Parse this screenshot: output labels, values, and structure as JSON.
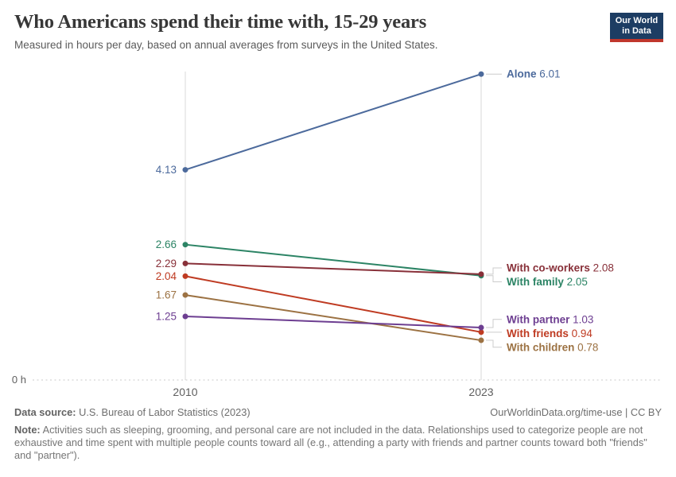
{
  "chart_data": {
    "type": "line",
    "variant": "slope",
    "title": "Who Americans spend their time with, 15-29 years",
    "subtitle": "Measured in hours per day, based on annual averages from surveys in the United States.",
    "x": [
      "2010",
      "2023"
    ],
    "series": [
      {
        "name": "Alone",
        "values": [
          4.13,
          6.01
        ],
        "color": "#4C6A9C"
      },
      {
        "name": "With family",
        "values": [
          2.66,
          2.05
        ],
        "color": "#2C8465"
      },
      {
        "name": "With co-workers",
        "values": [
          2.29,
          2.08
        ],
        "color": "#883039"
      },
      {
        "name": "With friends",
        "values": [
          2.04,
          0.94
        ],
        "color": "#BF3B22"
      },
      {
        "name": "With children",
        "values": [
          1.67,
          0.78
        ],
        "color": "#9C7243"
      },
      {
        "name": "With partner",
        "values": [
          1.25,
          1.03
        ],
        "color": "#6D3E91"
      }
    ],
    "ylim": [
      0,
      6.06
    ],
    "y_zero_label": "0 h",
    "grid": "vertical-year-gridlines, dotted zero baseline",
    "legend_position": "end-of-line labels (right), start values labeled left"
  },
  "logo": {
    "line1": "Our World",
    "line2": "in Data",
    "bg_color": "#1D3D63",
    "accent_color": "#C0372D"
  },
  "footer": {
    "source_label": "Data source:",
    "source_value": "U.S. Bureau of Labor Statistics (2023)",
    "link": "OurWorldinData.org/time-use | CC BY",
    "note_label": "Note:",
    "note_text": "Activities such as sleeping, grooming, and personal care are not included in the data. Relationships used to categorize people are not exhaustive and time spent with multiple people counts toward all (e.g., attending a party with friends and partner counts toward both \"friends\" and \"partner\")."
  }
}
